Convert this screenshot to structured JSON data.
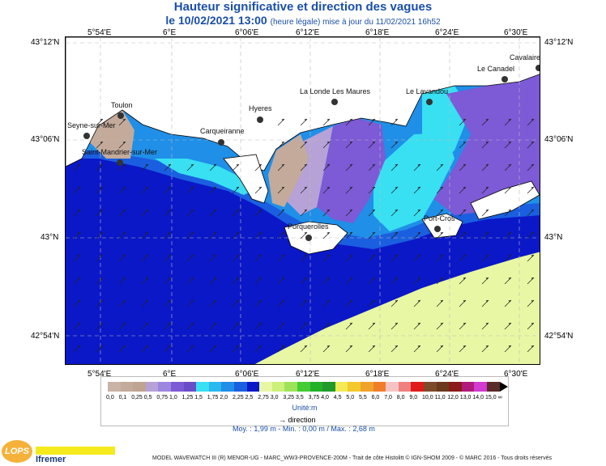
{
  "header": {
    "title": "Hauteur significative et direction des vagues",
    "date_label": "le 10/02/2021 13:00",
    "time_note": "(heure légale) mise à jour du 11/02/2021 16h52"
  },
  "axes": {
    "lon_ticks": [
      "5°54'E",
      "6°E",
      "6°06'E",
      "6°12'E",
      "6°18'E",
      "6°24'E",
      "6°30'E"
    ],
    "lat_ticks": [
      "43°12'N",
      "43°06'N",
      "43°N",
      "42°54'N"
    ]
  },
  "places": [
    {
      "name": "Toulon"
    },
    {
      "name": "Seyne-sur-Mer"
    },
    {
      "name": "Saint-Mandrier-sur-Mer"
    },
    {
      "name": "Carqueiranne"
    },
    {
      "name": "Hyeres"
    },
    {
      "name": "La Londe Les Maures"
    },
    {
      "name": "Porquerolles"
    },
    {
      "name": "Le Lavandou"
    },
    {
      "name": "Le Canadel"
    },
    {
      "name": "Cavalaire"
    },
    {
      "name": "Port-Cros"
    }
  ],
  "legend": {
    "ticks": [
      "0,0",
      "0,1",
      "0,25",
      "0,5",
      "0,75",
      "1,0",
      "1,25",
      "1,5",
      "1,75",
      "2,0",
      "2,25",
      "2,5",
      "2,75",
      "3,0",
      "3,25",
      "3,5",
      "3,75",
      "4,0",
      "4,5",
      "5,0",
      "5,5",
      "6,0",
      "7,0",
      "8,0",
      "9,0",
      "10,0",
      "11,0",
      "12,0",
      "13,0",
      "14,0",
      "15,0",
      "∞"
    ],
    "colors": [
      "#c9b3a6",
      "#c4aa9a",
      "#bfa491",
      "#b6a2d6",
      "#9d86e0",
      "#7d5ad6",
      "#6a4cc8",
      "#38e0f2",
      "#28b9ee",
      "#1f8fe8",
      "#1a5fe0",
      "#0b18c8",
      "#e8f7a4",
      "#ccf07a",
      "#9de35a",
      "#44cc33",
      "#23b12a",
      "#1f9a2b",
      "#f3ea55",
      "#f3c92c",
      "#f0a32b",
      "#f07d2a",
      "#f5c3c3",
      "#f08080",
      "#e01b1b",
      "#7d4a2a",
      "#6b3a1e",
      "#8b1a1a",
      "#b01a7a",
      "#d23ad2",
      "#5b2a2a"
    ],
    "unit": "Unité:m",
    "direction_label": "direction"
  },
  "stats": "Moy. : 1,99 m  -  Min. : 0,00 m / Max. : 2,68 m",
  "credit": "MODEL WAVEWATCH III (R) MENOR-UG - MARC_WW3-PROVENCE-200M - Trait de côte Histolitt © IGN-SHOM 2009 - © MARC 2016 - Tous droits réservés",
  "logos": {
    "lops": "LOPS",
    "ifremer": "Ifremer"
  },
  "colors": {
    "title": "#1a4fa8",
    "deep_sea": "#0b18c8",
    "offshore": "#e8f7a4",
    "land": "#ffffff",
    "shallow": "#c4aa9a"
  }
}
